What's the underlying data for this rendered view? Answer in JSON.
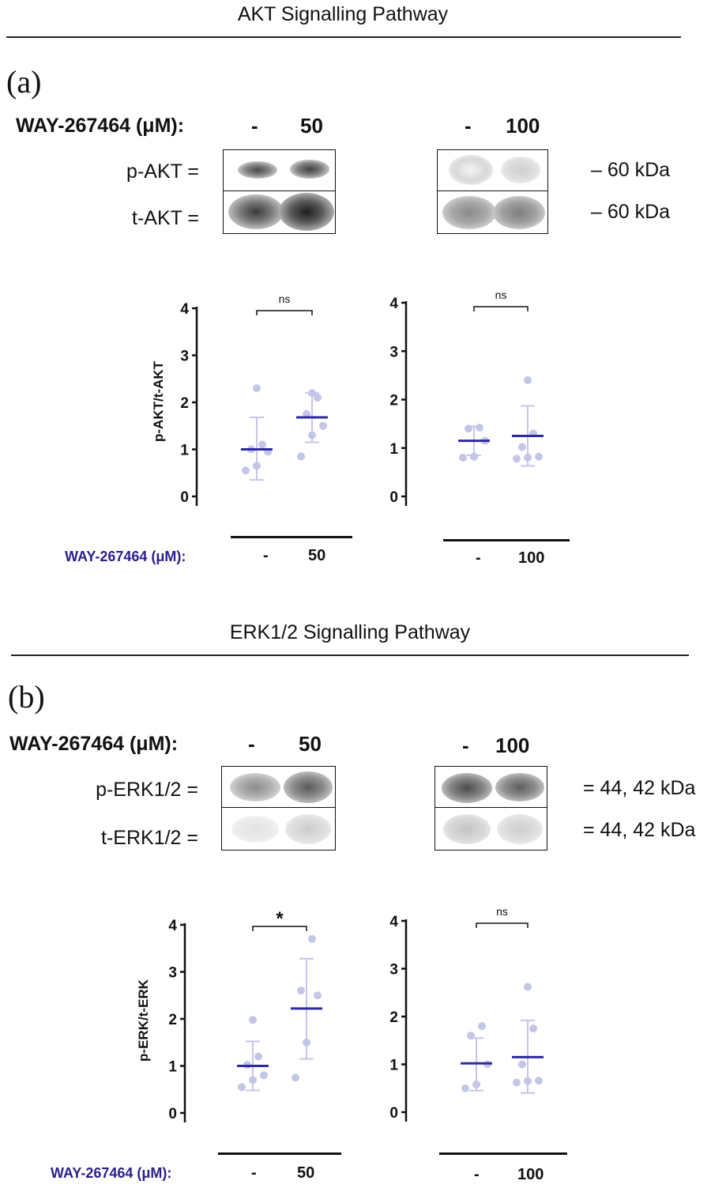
{
  "sections": [
    {
      "title": "AKT Signalling Pathway",
      "panel": "(a)",
      "treatment_label": "WAY-267464 (μM):",
      "blots": [
        {
          "lanes": [
            "-",
            "50"
          ]
        },
        {
          "lanes": [
            "-",
            "100"
          ]
        }
      ],
      "rows": [
        {
          "label": "p-AKT =",
          "kda": "– 60 kDa"
        },
        {
          "label": "t-AKT =",
          "kda": "– 60 kDa"
        }
      ],
      "x_axis_label": "WAY-267464 (μM):"
    },
    {
      "title": "ERK1/2 Signalling Pathway",
      "panel": "(b)",
      "treatment_label": "WAY-267464 (μM):",
      "blots": [
        {
          "lanes": [
            "-",
            "50"
          ]
        },
        {
          "lanes": [
            "-",
            "100"
          ]
        }
      ],
      "rows": [
        {
          "label": "p-ERK1/2 =",
          "kda": "= 44, 42 kDa"
        },
        {
          "label": "t-ERK1/2 =",
          "kda": "= 44, 42 kDa"
        }
      ],
      "x_axis_label": "WAY-267464 (μM):"
    }
  ],
  "colors": {
    "points": "#c4c6e8",
    "mean_line": "#2e2a9e",
    "axis_label": "#2a1f8a"
  },
  "chart_data": [
    {
      "type": "scatter",
      "ylabel": "p-AKT/t-AKT",
      "ylim": [
        0,
        4
      ],
      "yticks": [
        "0",
        "1",
        "2",
        "3",
        "4"
      ],
      "categories": [
        "-",
        "50"
      ],
      "groups": [
        {
          "category": "-",
          "points": [
            0.55,
            0.65,
            0.95,
            1.0,
            1.1,
            2.3
          ],
          "mean": 1.0,
          "sd": [
            0.35,
            1.68
          ]
        },
        {
          "category": "50",
          "points": [
            0.85,
            1.3,
            1.5,
            1.75,
            2.1,
            2.2
          ],
          "mean": 1.68,
          "sd": [
            1.15,
            2.2
          ]
        }
      ],
      "significance": "ns"
    },
    {
      "type": "scatter",
      "ylabel": "",
      "ylim": [
        0,
        4
      ],
      "yticks": [
        "0",
        "1",
        "2",
        "3",
        "4"
      ],
      "categories": [
        "-",
        "100"
      ],
      "groups": [
        {
          "category": "-",
          "points": [
            0.8,
            0.82,
            1.15,
            1.4,
            1.42
          ],
          "mean": 1.15,
          "sd": [
            0.85,
            1.45
          ]
        },
        {
          "category": "100",
          "points": [
            0.78,
            0.8,
            0.82,
            1.02,
            1.3,
            2.4
          ],
          "mean": 1.25,
          "sd": [
            0.63,
            1.87
          ]
        }
      ],
      "significance": "ns"
    },
    {
      "type": "scatter",
      "ylabel": "p-ERK/t-ERK",
      "ylim": [
        0,
        4
      ],
      "yticks": [
        "0",
        "1",
        "2",
        "3",
        "4"
      ],
      "categories": [
        "-",
        "50"
      ],
      "groups": [
        {
          "category": "-",
          "points": [
            0.55,
            0.7,
            0.8,
            1.02,
            1.2,
            1.98
          ],
          "mean": 1.0,
          "sd": [
            0.48,
            1.52
          ]
        },
        {
          "category": "50",
          "points": [
            0.75,
            1.5,
            2.5,
            2.6,
            3.7
          ],
          "mean": 2.22,
          "sd": [
            1.15,
            3.28
          ]
        }
      ],
      "significance": "*"
    },
    {
      "type": "scatter",
      "ylabel": "",
      "ylim": [
        0,
        4
      ],
      "yticks": [
        "0",
        "1",
        "2",
        "3",
        "4"
      ],
      "categories": [
        "-",
        "100"
      ],
      "groups": [
        {
          "category": "-",
          "points": [
            0.5,
            0.58,
            1.0,
            1.6,
            1.8
          ],
          "mean": 1.02,
          "sd": [
            0.45,
            1.55
          ]
        },
        {
          "category": "100",
          "points": [
            0.62,
            0.65,
            0.66,
            1.0,
            1.75,
            2.62
          ],
          "mean": 1.15,
          "sd": [
            0.4,
            1.92
          ]
        }
      ],
      "significance": "ns"
    }
  ]
}
